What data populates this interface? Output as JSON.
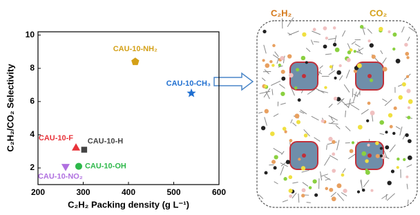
{
  "chart_data": {
    "type": "scatter",
    "xlabel": "C₂H₂ Packing density (g L⁻¹)",
    "ylabel": "C₂H₂/CO₂ Selectivity",
    "xlim": [
      200,
      600
    ],
    "xticks": [
      200,
      300,
      400,
      500,
      600
    ],
    "ylim": [
      1,
      10.2
    ],
    "yticks": [
      2,
      4,
      6,
      8,
      10
    ],
    "series": [
      {
        "name": "CAU-10-NH₂",
        "color": "#d4a017",
        "marker": "pentagon",
        "x": [
          415
        ],
        "values": [
          8.4
        ]
      },
      {
        "name": "CAU-10-CH₃",
        "color": "#1f6fd1",
        "marker": "star",
        "x": [
          539
        ],
        "values": [
          6.5
        ]
      },
      {
        "name": "CAU-10-F",
        "color": "#e8333a",
        "marker": "triangle",
        "x": [
          284
        ],
        "values": [
          3.2
        ]
      },
      {
        "name": "CAU-10-H",
        "color": "#444444",
        "marker": "square",
        "x": [
          302
        ],
        "values": [
          3.1
        ]
      },
      {
        "name": "CAU-10-OH",
        "color": "#2db84a",
        "marker": "circle",
        "x": [
          290
        ],
        "values": [
          2.1
        ]
      },
      {
        "name": "CAU-10-NO₂",
        "color": "#b070e0",
        "marker": "triangle-down",
        "x": [
          261
        ],
        "values": [
          2.1
        ]
      }
    ]
  },
  "illustration": {
    "labels": [
      "C₂H₂",
      "CO₂"
    ]
  }
}
